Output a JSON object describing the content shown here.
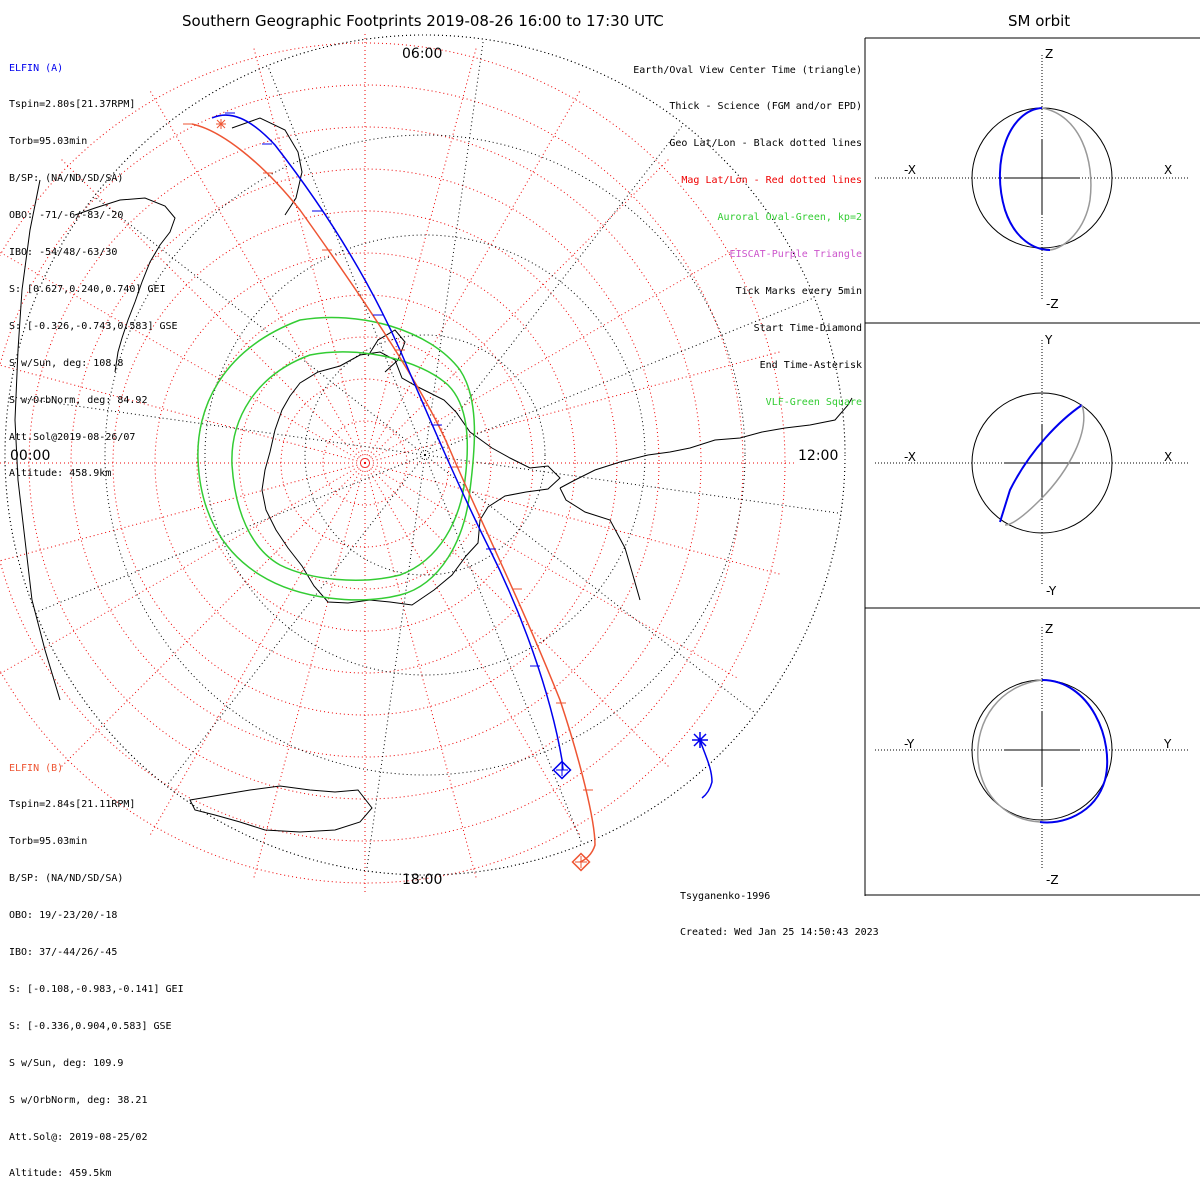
{
  "main_title": "Southern Geographic Footprints 2019-08-26 16:00 to 17:30 UTC",
  "sm_title": "SM orbit",
  "colors": {
    "elfin_a": "#0000ee",
    "elfin_b": "#ee5533",
    "oval": "#33cc33",
    "mag_grid": "#ee0000",
    "eiscat": "#cc55cc",
    "vlf": "#33cc33"
  },
  "time_labels": {
    "top": "06:00",
    "left": "00:00",
    "right": "12:00",
    "bottom": "18:00"
  },
  "elfin_a": {
    "name": "ELFIN (A)",
    "lines": [
      "Tspin=2.80s[21.37RPM]",
      "Torb=95.03min",
      "B/SP: (NA/ND/SD/SA)",
      "OBO: -71/-6/-83/-20",
      "IBO: -54/48/-63/30",
      "S: [0.627,0.240,0.740] GEI",
      "S: [-0.326,-0.743,0.583] GSE",
      "S w/Sun, deg: 108.8",
      "S w/OrbNorm, deg: 84.92",
      "Att.Sol@2019-08-26/07",
      "Altitude: 458.9km"
    ]
  },
  "elfin_b": {
    "name": "ELFIN (B)",
    "lines": [
      "Tspin=2.84s[21.11RPM]",
      "Torb=95.03min",
      "B/SP: (NA/ND/SD/SA)",
      "OBO: 19/-23/20/-18",
      "IBO: 37/-44/26/-45",
      "S: [-0.108,-0.983,-0.141] GEI",
      "S: [-0.336,0.904,0.583] GSE",
      "S w/Sun, deg: 109.9",
      "S w/OrbNorm, deg: 38.21",
      "Att.Sol@: 2019-08-25/02",
      "Altitude: 459.5km"
    ]
  },
  "legend": [
    {
      "text": "Earth/Oval View Center Time (triangle)",
      "color": "#000000"
    },
    {
      "text": "Thick - Science (FGM and/or EPD)",
      "color": "#000000"
    },
    {
      "text": "Geo Lat/Lon - Black dotted lines",
      "color": "#000000"
    },
    {
      "text": "Mag Lat/Lon - Red dotted lines",
      "color": "#ee0000"
    },
    {
      "text": "Auroral Oval-Green, kp=2",
      "color": "#33cc33"
    },
    {
      "text": "EISCAT-Purple Triangle",
      "color": "#cc55cc"
    },
    {
      "text": "Tick Marks every 5min",
      "color": "#000000"
    },
    {
      "text": "Start Time-Diamond",
      "color": "#000000"
    },
    {
      "text": "End Time-Asterisk",
      "color": "#000000"
    },
    {
      "text": "VLF-Green Square",
      "color": "#33cc33"
    }
  ],
  "footer": [
    "Tsyganenko-1996",
    "Created: Wed Jan 25 14:50:43 2023"
  ],
  "panels": [
    {
      "top": "Z",
      "left": "-X",
      "right": "X",
      "bottom": "-Z"
    },
    {
      "top": "Y",
      "left": "-X",
      "right": "X",
      "bottom": "-Y"
    },
    {
      "top": "Z",
      "left": "-Y",
      "right": "Y",
      "bottom": "-Z"
    }
  ]
}
